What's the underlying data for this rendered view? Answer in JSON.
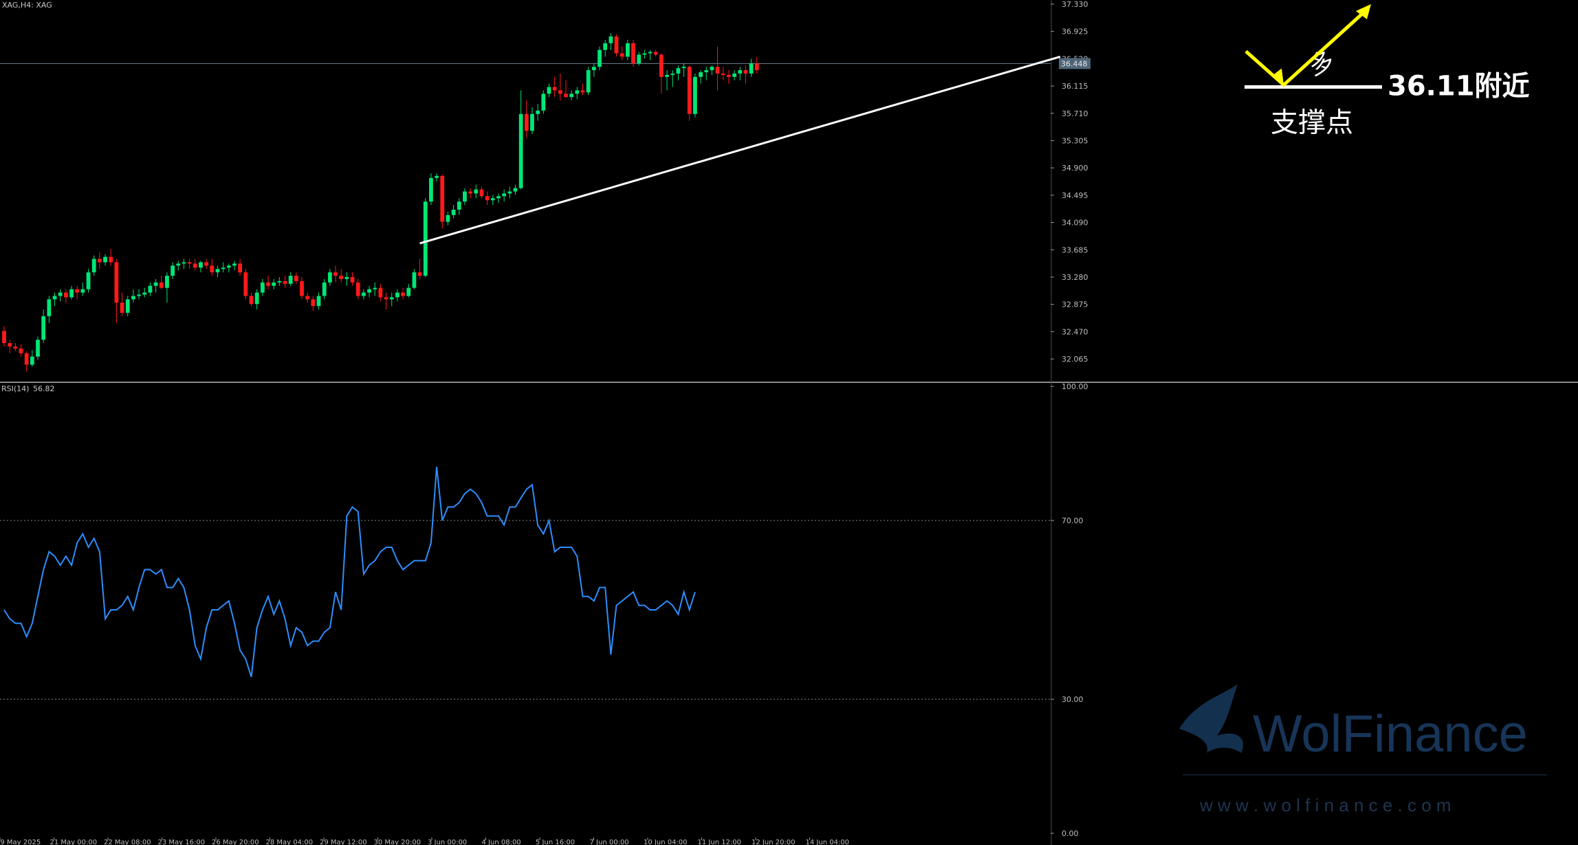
{
  "header": {
    "symbol_label": "XAG,H4:  XAG"
  },
  "colors": {
    "background": "#000000",
    "bull": "#00e676",
    "bear": "#ff1a1a",
    "axis_text": "#bfbfbf",
    "rsi_line": "#2e8fff",
    "trendline": "#ffffff",
    "arrow": "#ffff00",
    "price_line": "#6f8599",
    "watermark": "#1b3a5e"
  },
  "annotations": {
    "level_text": "36.11附近",
    "support_text": "支撑点",
    "direction_text": "多"
  },
  "watermark": {
    "brand": "WolFinance",
    "url": "w w w . w o l f i n a n c e . c o m"
  },
  "chart_data": [
    {
      "type": "candlestick",
      "symbol": "XAG",
      "timeframe": "H4",
      "current_price": "36.448",
      "y_ticks": [
        "37.330",
        "36.925",
        "36.520",
        "36.115",
        "35.710",
        "35.305",
        "34.900",
        "34.495",
        "34.090",
        "33.685",
        "33.280",
        "32.875",
        "32.470",
        "32.065"
      ],
      "x_tick_labels": [
        "19 May 2025",
        "21 May 00:00",
        "22 May 08:00",
        "23 May 16:00",
        "26 May 20:00",
        "28 May 04:00",
        "29 May 12:00",
        "30 May 20:00",
        "3 Jun 00:00",
        "4 Jun 08:00",
        "5 Jun 16:00",
        "7 Jun 00:00",
        "10 Jun 04:00",
        "11 Jun 12:00",
        "12 Jun 20:00",
        "14 Jun 04:00"
      ],
      "ylim": [
        31.76,
        37.35
      ],
      "trendline": {
        "from": [
          74,
          33.78
        ],
        "to": [
          188,
          36.55
        ]
      },
      "support_level": 36.11,
      "candles": [
        [
          32.48,
          32.55,
          32.25,
          32.3
        ],
        [
          32.3,
          32.35,
          32.15,
          32.25
        ],
        [
          32.25,
          32.3,
          32.18,
          32.22
        ],
        [
          32.22,
          32.28,
          32.1,
          32.15
        ],
        [
          32.15,
          32.18,
          31.88,
          31.98
        ],
        [
          31.98,
          32.2,
          31.95,
          32.1
        ],
        [
          32.1,
          32.4,
          32.05,
          32.35
        ],
        [
          32.35,
          32.8,
          32.3,
          32.7
        ],
        [
          32.7,
          33.0,
          32.6,
          32.95
        ],
        [
          32.95,
          33.05,
          32.85,
          33.0
        ],
        [
          33.0,
          33.1,
          32.92,
          33.05
        ],
        [
          33.05,
          33.1,
          32.9,
          32.98
        ],
        [
          32.98,
          33.15,
          32.95,
          33.1
        ],
        [
          33.1,
          33.15,
          32.95,
          33.05
        ],
        [
          33.05,
          33.2,
          33.0,
          33.1
        ],
        [
          33.1,
          33.4,
          33.05,
          33.35
        ],
        [
          33.35,
          33.6,
          33.3,
          33.55
        ],
        [
          33.55,
          33.65,
          33.4,
          33.5
        ],
        [
          33.5,
          33.62,
          33.45,
          33.58
        ],
        [
          33.58,
          33.7,
          33.45,
          33.5
        ],
        [
          33.5,
          33.55,
          32.6,
          32.9
        ],
        [
          32.9,
          33.05,
          32.7,
          32.75
        ],
        [
          32.75,
          33.0,
          32.7,
          32.95
        ],
        [
          32.95,
          33.1,
          32.9,
          33.0
        ],
        [
          33.0,
          33.1,
          32.95,
          33.02
        ],
        [
          33.02,
          33.12,
          32.98,
          33.05
        ],
        [
          33.05,
          33.2,
          33.0,
          33.15
        ],
        [
          33.15,
          33.25,
          33.05,
          33.2
        ],
        [
          33.2,
          33.3,
          33.1,
          33.12
        ],
        [
          33.12,
          33.35,
          32.9,
          33.3
        ],
        [
          33.3,
          33.5,
          33.25,
          33.45
        ],
        [
          33.45,
          33.52,
          33.38,
          33.48
        ],
        [
          33.48,
          33.55,
          33.4,
          33.5
        ],
        [
          33.5,
          33.55,
          33.4,
          33.48
        ],
        [
          33.48,
          33.55,
          33.38,
          33.42
        ],
        [
          33.42,
          33.52,
          33.35,
          33.5
        ],
        [
          33.5,
          33.55,
          33.4,
          33.45
        ],
        [
          33.45,
          33.55,
          33.3,
          33.35
        ],
        [
          33.35,
          33.45,
          33.28,
          33.4
        ],
        [
          33.4,
          33.5,
          33.35,
          33.42
        ],
        [
          33.42,
          33.48,
          33.35,
          33.45
        ],
        [
          33.45,
          33.52,
          33.38,
          33.48
        ],
        [
          33.48,
          33.55,
          33.3,
          33.35
        ],
        [
          33.35,
          33.4,
          32.95,
          33.0
        ],
        [
          33.0,
          33.05,
          32.85,
          32.88
        ],
        [
          32.88,
          33.1,
          32.8,
          33.05
        ],
        [
          33.05,
          33.25,
          33.0,
          33.2
        ],
        [
          33.2,
          33.3,
          33.1,
          33.15
        ],
        [
          33.15,
          33.25,
          33.1,
          33.2
        ],
        [
          33.2,
          33.28,
          33.15,
          33.22
        ],
        [
          33.22,
          33.3,
          33.12,
          33.18
        ],
        [
          33.18,
          33.35,
          33.15,
          33.3
        ],
        [
          33.3,
          33.35,
          33.18,
          33.22
        ],
        [
          33.22,
          33.28,
          32.95,
          33.0
        ],
        [
          33.0,
          33.05,
          32.9,
          32.95
        ],
        [
          32.95,
          33.0,
          32.78,
          32.85
        ],
        [
          32.85,
          33.05,
          32.8,
          33.0
        ],
        [
          33.0,
          33.25,
          32.95,
          33.2
        ],
        [
          33.2,
          33.4,
          33.15,
          33.35
        ],
        [
          33.35,
          33.45,
          33.2,
          33.3
        ],
        [
          33.3,
          33.4,
          33.2,
          33.25
        ],
        [
          33.25,
          33.35,
          33.15,
          33.28
        ],
        [
          33.28,
          33.35,
          33.15,
          33.2
        ],
        [
          33.2,
          33.25,
          32.95,
          33.0
        ],
        [
          33.0,
          33.1,
          32.95,
          33.05
        ],
        [
          33.05,
          33.15,
          32.98,
          33.1
        ],
        [
          33.1,
          33.2,
          33.0,
          33.12
        ],
        [
          33.12,
          33.18,
          32.92,
          32.98
        ],
        [
          32.98,
          33.05,
          32.8,
          32.95
        ],
        [
          32.95,
          33.05,
          32.85,
          32.98
        ],
        [
          32.98,
          33.1,
          32.92,
          33.05
        ],
        [
          33.05,
          33.12,
          32.95,
          33.0
        ],
        [
          33.0,
          33.18,
          32.98,
          33.12
        ],
        [
          33.12,
          33.4,
          33.1,
          33.35
        ],
        [
          33.35,
          33.55,
          33.25,
          33.3
        ],
        [
          33.3,
          34.45,
          33.28,
          34.4
        ],
        [
          34.4,
          34.82,
          34.35,
          34.75
        ],
        [
          34.75,
          34.82,
          34.7,
          34.78
        ],
        [
          34.78,
          34.8,
          34.0,
          34.1
        ],
        [
          34.1,
          34.25,
          34.05,
          34.2
        ],
        [
          34.2,
          34.35,
          34.15,
          34.28
        ],
        [
          34.28,
          34.45,
          34.2,
          34.4
        ],
        [
          34.4,
          34.6,
          34.35,
          34.55
        ],
        [
          34.55,
          34.6,
          34.45,
          34.52
        ],
        [
          34.52,
          34.65,
          34.45,
          34.58
        ],
        [
          34.58,
          34.62,
          34.45,
          34.48
        ],
        [
          34.48,
          34.55,
          34.35,
          34.42
        ],
        [
          34.42,
          34.5,
          34.35,
          34.45
        ],
        [
          34.45,
          34.52,
          34.38,
          34.48
        ],
        [
          34.48,
          34.58,
          34.4,
          34.52
        ],
        [
          34.52,
          34.62,
          34.45,
          34.55
        ],
        [
          34.55,
          34.65,
          34.5,
          34.6
        ],
        [
          34.6,
          36.05,
          34.58,
          35.7
        ],
        [
          35.7,
          35.9,
          35.35,
          35.45
        ],
        [
          35.45,
          35.8,
          35.4,
          35.7
        ],
        [
          35.7,
          35.85,
          35.6,
          35.75
        ],
        [
          35.75,
          36.05,
          35.7,
          36.0
        ],
        [
          36.0,
          36.15,
          35.95,
          36.1
        ],
        [
          36.1,
          36.25,
          35.95,
          36.05
        ],
        [
          36.05,
          36.3,
          35.9,
          36.0
        ],
        [
          36.0,
          36.2,
          35.95,
          35.95
        ],
        [
          35.95,
          36.05,
          35.9,
          36.0
        ],
        [
          36.0,
          36.1,
          35.92,
          36.05
        ],
        [
          36.05,
          36.15,
          35.98,
          36.02
        ],
        [
          36.02,
          36.4,
          35.98,
          36.35
        ],
        [
          36.35,
          36.45,
          36.25,
          36.4
        ],
        [
          36.4,
          36.7,
          36.35,
          36.65
        ],
        [
          36.65,
          36.8,
          36.55,
          36.75
        ],
        [
          36.75,
          36.9,
          36.65,
          36.85
        ],
        [
          36.85,
          36.88,
          36.55,
          36.6
        ],
        [
          36.6,
          36.7,
          36.5,
          36.55
        ],
        [
          36.55,
          36.8,
          36.5,
          36.75
        ],
        [
          36.75,
          36.8,
          36.4,
          36.45
        ],
        [
          36.45,
          36.62,
          36.42,
          36.58
        ],
        [
          36.58,
          36.65,
          36.52,
          36.6
        ],
        [
          36.6,
          36.65,
          36.5,
          36.62
        ],
        [
          36.62,
          36.65,
          36.55,
          36.58
        ],
        [
          36.58,
          36.6,
          36.0,
          36.25
        ],
        [
          36.25,
          36.35,
          36.05,
          36.28
        ],
        [
          36.28,
          36.35,
          36.1,
          36.3
        ],
        [
          36.3,
          36.42,
          36.2,
          36.38
        ],
        [
          36.38,
          36.45,
          36.25,
          36.4
        ],
        [
          36.4,
          36.42,
          35.6,
          35.7
        ],
        [
          35.7,
          36.3,
          35.65,
          36.25
        ],
        [
          36.25,
          36.35,
          36.15,
          36.32
        ],
        [
          36.32,
          36.4,
          36.2,
          36.35
        ],
        [
          36.35,
          36.42,
          36.28,
          36.4
        ],
        [
          36.4,
          36.7,
          36.05,
          36.3
        ],
        [
          36.3,
          36.4,
          36.2,
          36.28
        ],
        [
          36.28,
          36.35,
          36.15,
          36.25
        ],
        [
          36.25,
          36.35,
          36.2,
          36.3
        ],
        [
          36.3,
          36.4,
          36.2,
          36.35
        ],
        [
          36.35,
          36.42,
          36.15,
          36.3
        ],
        [
          36.3,
          36.52,
          36.25,
          36.45
        ],
        [
          36.45,
          36.55,
          36.3,
          36.35
        ]
      ]
    },
    {
      "type": "line",
      "indicator": "RSI(14)",
      "current_value": "56.82",
      "ylim": [
        0,
        100
      ],
      "y_ticks": [
        "100.00",
        "70.00",
        "30.00",
        "0.00"
      ],
      "levels": [
        70,
        30
      ],
      "values": [
        50,
        48,
        47,
        47,
        44,
        47,
        53,
        59,
        63,
        62,
        60,
        62,
        60,
        65,
        67,
        64,
        66,
        63,
        48,
        50,
        50,
        51,
        53,
        50,
        55,
        59,
        59,
        58,
        59,
        55,
        55,
        57,
        55,
        50,
        42,
        39,
        46,
        50,
        50,
        51,
        52,
        47,
        41,
        39,
        35,
        46,
        50,
        53,
        49,
        52,
        48,
        42,
        46,
        45,
        42,
        43,
        43,
        45,
        46,
        54,
        50,
        71,
        73,
        72,
        58,
        60,
        61,
        63,
        64,
        64,
        61,
        59,
        60,
        61,
        61,
        61,
        65,
        82,
        70,
        73,
        73,
        74,
        76,
        77,
        76,
        74,
        71,
        71,
        71,
        69,
        73,
        73,
        75,
        77,
        78,
        69,
        67,
        70,
        63,
        64,
        64,
        64,
        62,
        53,
        53,
        52,
        55,
        55,
        40,
        51,
        52,
        53,
        54,
        51,
        51,
        50,
        50,
        51,
        52,
        51,
        49,
        54,
        50,
        54
      ]
    }
  ]
}
